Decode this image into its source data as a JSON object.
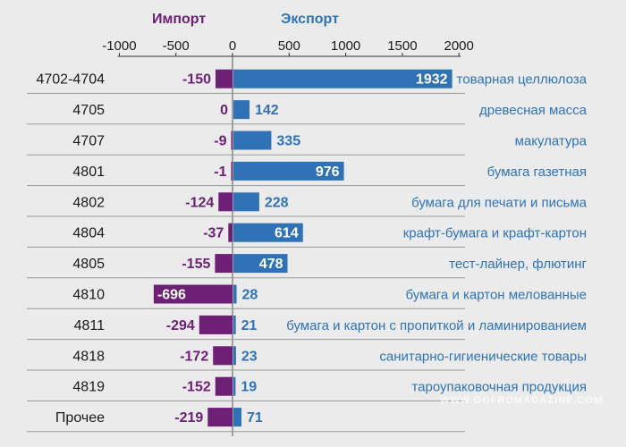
{
  "legend": {
    "import": "Импорт",
    "export": "Экспорт"
  },
  "colors": {
    "import": "#6e2077",
    "export": "#2f73b6",
    "background": "#ebebeb"
  },
  "watermark": "WWW.GOFROMAGAZINE.COM",
  "chart_data": {
    "type": "bar",
    "orientation": "horizontal",
    "xlim": [
      -1000,
      2000
    ],
    "xticks": [
      -1000,
      -500,
      0,
      500,
      1000,
      1500,
      2000
    ],
    "categories": [
      "4702-4704",
      "4705",
      "4707",
      "4801",
      "4802",
      "4804",
      "4805",
      "4810",
      "4811",
      "4818",
      "4819",
      "Прочее"
    ],
    "descriptions": [
      "товарная целлюлоза",
      "древесная масса",
      "макулатура",
      "бумага газетная",
      "бумага для печати и письма",
      "крафт-бумага и крафт-картон",
      "тест-лайнер, флютинг",
      "бумага и картон мелованные",
      "бумага и картон с пропиткой и ламинированием",
      "санитарно-гигиенические товары",
      "тароупаковочная продукция",
      ""
    ],
    "series": [
      {
        "name": "Импорт",
        "values": [
          -150,
          0,
          -9,
          -1,
          -124,
          -37,
          -155,
          -696,
          -294,
          -172,
          -152,
          -219
        ]
      },
      {
        "name": "Экспорт",
        "values": [
          1932,
          142,
          335,
          976,
          228,
          614,
          478,
          28,
          21,
          23,
          19,
          71
        ]
      }
    ]
  }
}
